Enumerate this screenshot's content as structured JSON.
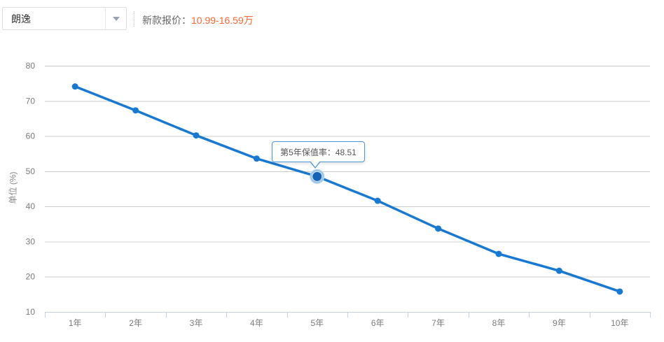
{
  "header": {
    "model": "朗逸",
    "price_label": "新款报价：",
    "price_value": "10.99-16.59万",
    "price_color": "#ff6633"
  },
  "chart_data": {
    "type": "line",
    "title": "",
    "y_axis_title": "单位 (%)",
    "xlabel": "",
    "ylabel": "单位 (%)",
    "categories": [
      "1年",
      "2年",
      "3年",
      "4年",
      "5年",
      "6年",
      "7年",
      "8年",
      "9年",
      "10年"
    ],
    "series": [
      {
        "name": "保值率",
        "values": [
          74.1,
          67.3,
          60.2,
          53.6,
          48.51,
          41.6,
          33.7,
          26.5,
          21.7,
          15.8
        ]
      }
    ],
    "ylim": [
      10,
      80
    ],
    "y_ticks": [
      10,
      20,
      30,
      40,
      50,
      60,
      70,
      80
    ],
    "grid": "horizontal-only",
    "legend": "none",
    "highlight": {
      "index": 4,
      "tooltip": "第5年保值率：48.51",
      "value": 48.51
    },
    "colors": {
      "line": "#1879d2",
      "point": "#1879d2",
      "highlight_point": "#1563b8",
      "halo_fill": "rgba(24,121,210,0.16)",
      "halo_ring": "rgba(24,121,210,0.35)",
      "grid": "#cccccc",
      "axis": "#c3d2e2",
      "tick_text": "#7a7a7a",
      "tooltip_border": "#4a97dd",
      "tooltip_text": "#555555"
    }
  }
}
